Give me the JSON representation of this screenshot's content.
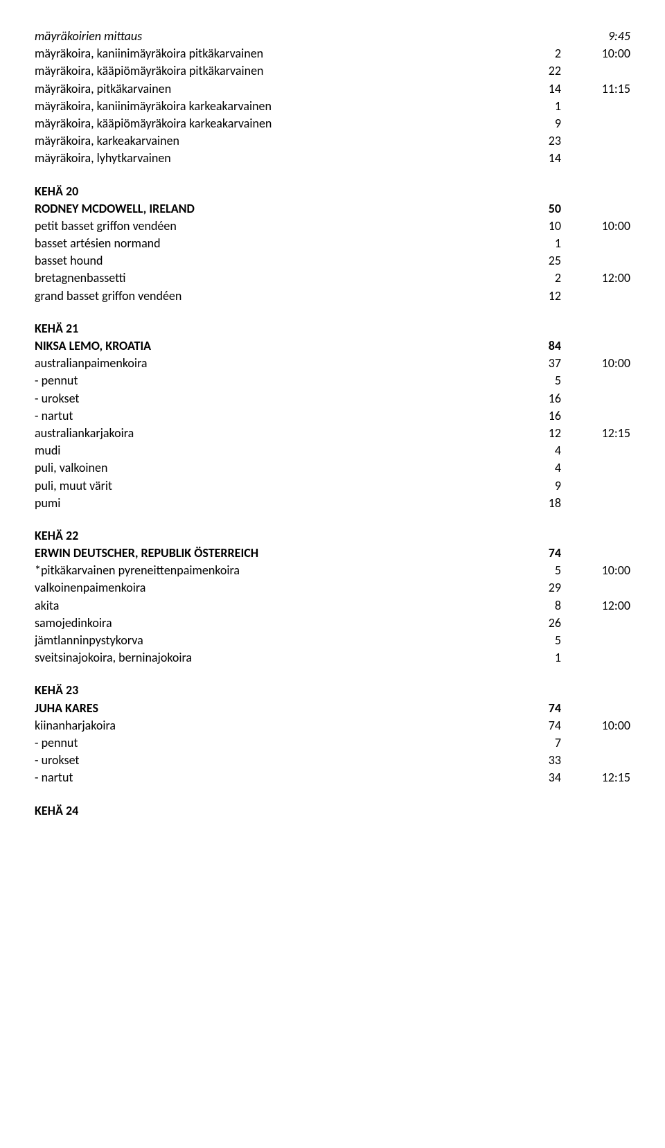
{
  "intro": {
    "measurement": {
      "label": "mäyräkoirien mittaus",
      "time": "9:45"
    },
    "rows": [
      {
        "label": "mäyräkoira, kaniinimäyräkoira pitkäkarvainen",
        "n": "2",
        "t": "10:00"
      },
      {
        "label": "mäyräkoira, kääpiömäyräkoira pitkäkarvainen",
        "n": "22",
        "t": ""
      },
      {
        "label": "mäyräkoira, pitkäkarvainen",
        "n": "14",
        "t": "11:15"
      },
      {
        "label": "mäyräkoira, kaniinimäyräkoira karkeakarvainen",
        "n": "1",
        "t": ""
      },
      {
        "label": "mäyräkoira, kääpiömäyräkoira karkeakarvainen",
        "n": "9",
        "t": ""
      },
      {
        "label": "mäyräkoira, karkeakarvainen",
        "n": "23",
        "t": ""
      },
      {
        "label": "mäyräkoira, lyhytkarvainen",
        "n": "14",
        "t": ""
      }
    ]
  },
  "keha20": {
    "title": "KEHÄ 20",
    "judge": {
      "name": "RODNEY MCDOWELL, IRELAND",
      "n": "50"
    },
    "rows": [
      {
        "label": "petit basset griffon vendéen",
        "n": "10",
        "t": "10:00"
      },
      {
        "label": "basset artésien normand",
        "n": "1",
        "t": ""
      },
      {
        "label": "basset hound",
        "n": "25",
        "t": ""
      },
      {
        "label": "bretagnenbassetti",
        "n": "2",
        "t": "12:00"
      },
      {
        "label": "grand basset griffon vendéen",
        "n": "12",
        "t": ""
      }
    ]
  },
  "keha21": {
    "title": "KEHÄ 21",
    "judge": {
      "name": "NIKSA LEMO, KROATIA",
      "n": "84"
    },
    "rows": [
      {
        "label": "australianpaimenkoira",
        "n": "37",
        "t": "10:00"
      },
      {
        "label": "- pennut",
        "n": "5",
        "t": ""
      },
      {
        "label": "- urokset",
        "n": "16",
        "t": ""
      },
      {
        "label": "- nartut",
        "n": "16",
        "t": ""
      },
      {
        "label": "australiankarjakoira",
        "n": "12",
        "t": "12:15"
      },
      {
        "label": "mudi",
        "n": "4",
        "t": ""
      },
      {
        "label": "puli, valkoinen",
        "n": "4",
        "t": ""
      },
      {
        "label": "puli, muut värit",
        "n": "9",
        "t": ""
      },
      {
        "label": "pumi",
        "n": "18",
        "t": ""
      }
    ]
  },
  "keha22": {
    "title": "KEHÄ 22",
    "judge": {
      "name": "ERWIN DEUTSCHER, REPUBLIK ÖSTERREICH",
      "n": "74"
    },
    "rows": [
      {
        "label": "*pitkäkarvainen pyreneittenpaimenkoira",
        "n": "5",
        "t": "10:00"
      },
      {
        "label": "valkoinenpaimenkoira",
        "n": "29",
        "t": ""
      },
      {
        "label": "akita",
        "n": "8",
        "t": "12:00"
      },
      {
        "label": "samojedinkoira",
        "n": "26",
        "t": ""
      },
      {
        "label": "jämtlanninpystykorva",
        "n": "5",
        "t": ""
      },
      {
        "label": "sveitsinajokoira, berninajokoira",
        "n": "1",
        "t": ""
      }
    ]
  },
  "keha23": {
    "title": "KEHÄ 23",
    "judge": {
      "name": "JUHA KARES",
      "n": "74"
    },
    "rows": [
      {
        "label": "kiinanharjakoira",
        "n": "74",
        "t": "10:00"
      },
      {
        "label": "- pennut",
        "n": "7",
        "t": ""
      },
      {
        "label": "- urokset",
        "n": "33",
        "t": ""
      },
      {
        "label": "- nartut",
        "n": "34",
        "t": "12:15"
      }
    ]
  },
  "keha24": {
    "title": "KEHÄ 24"
  }
}
